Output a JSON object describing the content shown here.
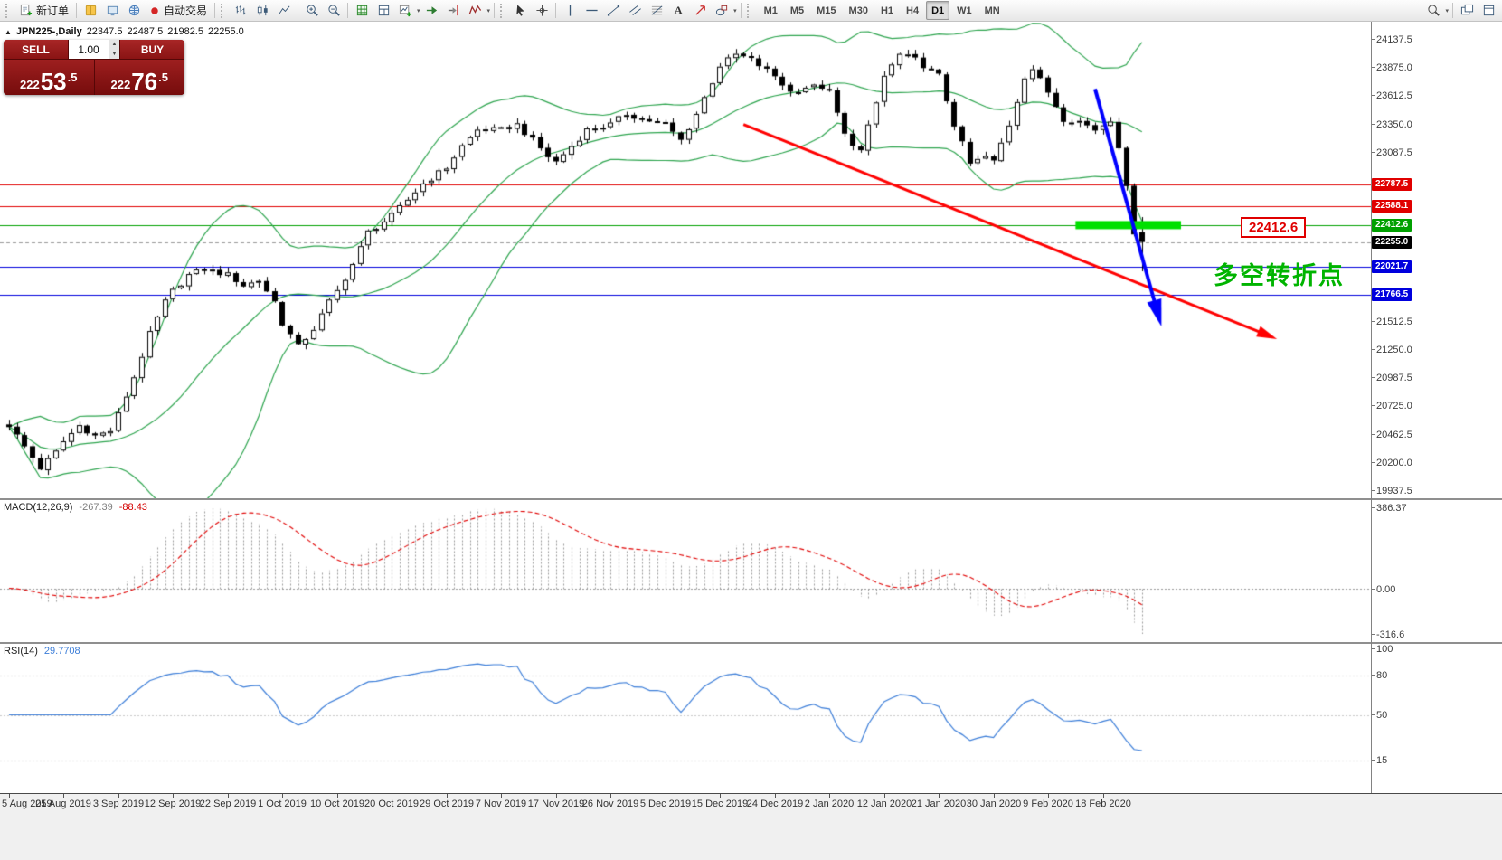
{
  "icons": {
    "caret_down": "▾",
    "triangle_up": "▲",
    "spin_up": "▲",
    "spin_down": "▼",
    "text_tool": "A"
  },
  "toolbar": {
    "new_order_label": "新订单",
    "auto_trading_label": "自动交易",
    "timeframes": [
      "M1",
      "M5",
      "M15",
      "M30",
      "H1",
      "H4",
      "D1",
      "W1",
      "MN"
    ],
    "active_timeframe": "D1"
  },
  "chart_header": {
    "symbol": "JPN225-,Daily",
    "open": "22347.5",
    "high": "22487.5",
    "low": "21982.5",
    "close": "22255.0"
  },
  "trade_panel": {
    "sell_label": "SELL",
    "buy_label": "BUY",
    "volume": "1.00",
    "sell_price_prefix": "222",
    "sell_price_big": "53",
    "sell_price_suffix": ".5",
    "buy_price_prefix": "222",
    "buy_price_big": "76",
    "buy_price_suffix": ".5"
  },
  "annotations": {
    "support_price_label": "22412.6",
    "turning_point_text": "多空转折点"
  },
  "macd_panel": {
    "label": "MACD(12,26,9)",
    "main_value": "-267.39",
    "signal_value": "-88.43",
    "axis_labels": [
      "386.37",
      "0.00",
      "-316.6"
    ]
  },
  "rsi_panel": {
    "label": "RSI(14)",
    "value": "29.7708",
    "axis_labels": [
      "100",
      "80",
      "50",
      "15"
    ],
    "levels": [
      80,
      50,
      15
    ]
  },
  "price_axis": {
    "gray_labels": [
      "24137.5",
      "23875.0",
      "23612.5",
      "23350.0",
      "23087.5",
      "22825.0",
      "22562.5",
      "22300.0",
      "22037.5",
      "21775.0",
      "21512.5",
      "21250.0",
      "20987.5",
      "20725.0",
      "20462.5",
      "20200.0",
      "19937.5"
    ],
    "tags": [
      {
        "text": "22787.5",
        "price": 22787.5,
        "bg": "#e00000"
      },
      {
        "text": "22588.1",
        "price": 22588.1,
        "bg": "#e00000"
      },
      {
        "text": "22412.6",
        "price": 22412.6,
        "bg": "#00a000"
      },
      {
        "text": "22255.0",
        "price": 22255.0,
        "bg": "#000000"
      },
      {
        "text": "22021.7",
        "price": 22021.7,
        "bg": "#0000dd"
      },
      {
        "text": "21766.5",
        "price": 21766.5,
        "bg": "#0000dd"
      }
    ]
  },
  "time_axis": {
    "labels": [
      "5 Aug 2019",
      "25 Aug 2019",
      "3 Sep 2019",
      "12 Sep 2019",
      "22 Sep 2019",
      "1 Oct 2019",
      "10 Oct 2019",
      "20 Oct 2019",
      "29 Oct 2019",
      "7 Nov 2019",
      "17 Nov 2019",
      "26 Nov 2019",
      "5 Dec 2019",
      "15 Dec 2019",
      "24 Dec 2019",
      "2 Jan 2020",
      "12 Jan 2020",
      "21 Jan 2020",
      "30 Jan 2020",
      "9 Feb 2020",
      "18 Feb 2020"
    ]
  },
  "chart_data": [
    {
      "type": "candlestick",
      "title": "JPN225- Daily",
      "bar_count": 146,
      "bars_per_x_label": 7,
      "y_range_visible": [
        19937.5,
        24137.5
      ],
      "last_bar_ohlc": [
        22347.5,
        22487.5,
        21982.5,
        22255.0
      ],
      "close_anchors": [
        [
          0,
          20550
        ],
        [
          2,
          20350
        ],
        [
          4,
          20150
        ],
        [
          6,
          20300
        ],
        [
          7,
          20400
        ],
        [
          9,
          20550
        ],
        [
          11,
          20450
        ],
        [
          13,
          20500
        ],
        [
          14,
          20650
        ],
        [
          16,
          21000
        ],
        [
          18,
          21400
        ],
        [
          20,
          21700
        ],
        [
          21,
          21800
        ],
        [
          23,
          21950
        ],
        [
          25,
          22000
        ],
        [
          28,
          21950
        ],
        [
          30,
          21850
        ],
        [
          32,
          21900
        ],
        [
          34,
          21700
        ],
        [
          35,
          21500
        ],
        [
          37,
          21280
        ],
        [
          39,
          21450
        ],
        [
          41,
          21700
        ],
        [
          42,
          21800
        ],
        [
          44,
          22050
        ],
        [
          46,
          22350
        ],
        [
          48,
          22450
        ],
        [
          49,
          22500
        ],
        [
          51,
          22650
        ],
        [
          53,
          22800
        ],
        [
          55,
          22900
        ],
        [
          56,
          22950
        ],
        [
          58,
          23150
        ],
        [
          60,
          23300
        ],
        [
          63,
          23300
        ],
        [
          65,
          23350
        ],
        [
          67,
          23200
        ],
        [
          69,
          23050
        ],
        [
          70,
          23000
        ],
        [
          72,
          23150
        ],
        [
          74,
          23300
        ],
        [
          77,
          23350
        ],
        [
          79,
          23450
        ],
        [
          81,
          23400
        ],
        [
          84,
          23350
        ],
        [
          86,
          23200
        ],
        [
          88,
          23450
        ],
        [
          90,
          23750
        ],
        [
          91,
          23900
        ],
        [
          93,
          24000
        ],
        [
          95,
          23950
        ],
        [
          97,
          23850
        ],
        [
          98,
          23800
        ],
        [
          100,
          23650
        ],
        [
          102,
          23700
        ],
        [
          104,
          23700
        ],
        [
          105,
          23650
        ],
        [
          107,
          23250
        ],
        [
          109,
          23100
        ],
        [
          111,
          23550
        ],
        [
          112,
          23800
        ],
        [
          114,
          24000
        ],
        [
          116,
          23950
        ],
        [
          118,
          23850
        ],
        [
          119,
          23800
        ],
        [
          121,
          23350
        ],
        [
          123,
          22980
        ],
        [
          125,
          23050
        ],
        [
          126,
          23000
        ],
        [
          128,
          23350
        ],
        [
          130,
          23800
        ],
        [
          131,
          23870
        ],
        [
          133,
          23650
        ],
        [
          135,
          23400
        ],
        [
          137,
          23380
        ],
        [
          139,
          23300
        ],
        [
          140,
          23350
        ],
        [
          141,
          23400
        ],
        [
          142,
          23150
        ],
        [
          143,
          22750
        ],
        [
          144,
          22350
        ],
        [
          145,
          22255
        ]
      ],
      "overlays": {
        "bollinger": {
          "period": 20,
          "deviation": 2,
          "color": "#2da44e"
        }
      },
      "hlines": [
        {
          "price": 22787.5,
          "color": "#e00000",
          "style": "solid",
          "width": 1
        },
        {
          "price": 22588.1,
          "color": "#e00000",
          "style": "solid",
          "width": 1
        },
        {
          "price": 22412.6,
          "color": "#00a000",
          "style": "solid",
          "width": 1
        },
        {
          "price": 22255.0,
          "color": "#999999",
          "style": "dashed",
          "width": 1
        },
        {
          "price": 22021.7,
          "color": "#0000dd",
          "style": "solid",
          "width": 1
        },
        {
          "price": 21766.5,
          "color": "#0000dd",
          "style": "solid",
          "width": 1
        }
      ],
      "drawings": {
        "red_trend_arrow": {
          "from_bar": 94,
          "from_price": 23350,
          "to_bar": 161,
          "to_price": 21390,
          "color": "#ff0000",
          "width": 3
        },
        "blue_arrow": {
          "from_bar": 139,
          "from_price": 23680,
          "to_bar": 147,
          "to_price": 21600,
          "color": "#0000ff",
          "width": 4
        },
        "green_zone": {
          "from_bar": 136.5,
          "to_bar": 150,
          "price": 22412.6,
          "thickness": 9,
          "color": "#00e000"
        }
      }
    },
    {
      "type": "macd",
      "period_fast": 12,
      "period_slow": 26,
      "period_signal": 9,
      "last_main": -267.39,
      "last_signal": -88.43,
      "axis": [
        386.37,
        0.0,
        -316.6
      ]
    },
    {
      "type": "rsi",
      "period": 14,
      "last_value": 29.7708,
      "axis": [
        100,
        80,
        50,
        15
      ]
    }
  ]
}
